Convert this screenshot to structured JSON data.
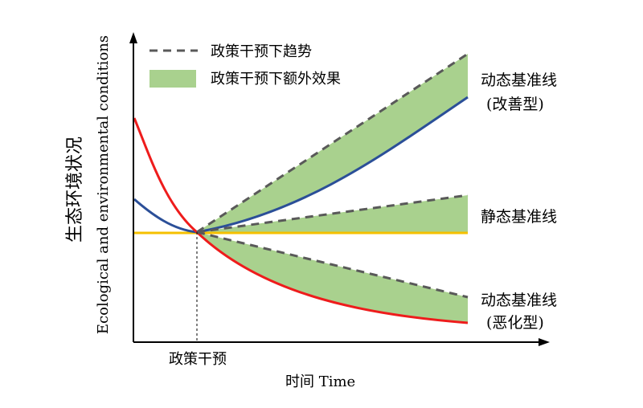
{
  "legend": {
    "trend_label": "政策干预下趋势",
    "extra_effect_label": "政策干预下额外效果"
  },
  "axes": {
    "x_label": "时间 Time",
    "x_marker_label": "政策干预",
    "y_label_cn": "生态环境状况",
    "y_label_en": "Ecological and environmental conditions"
  },
  "baselines": {
    "improving": {
      "line1": "动态基准线",
      "line2": "(改善型)",
      "color": "#2b4f98"
    },
    "static": {
      "line1": "静态基准线",
      "color": "#f5c000"
    },
    "deteriorating": {
      "line1": "动态基准线",
      "line2": "(恶化型)",
      "color": "#ee1c1c"
    }
  },
  "colors": {
    "trend_dash": "#595959",
    "extra_effect_fill": "#a9d18e",
    "axis": "#000000"
  }
}
